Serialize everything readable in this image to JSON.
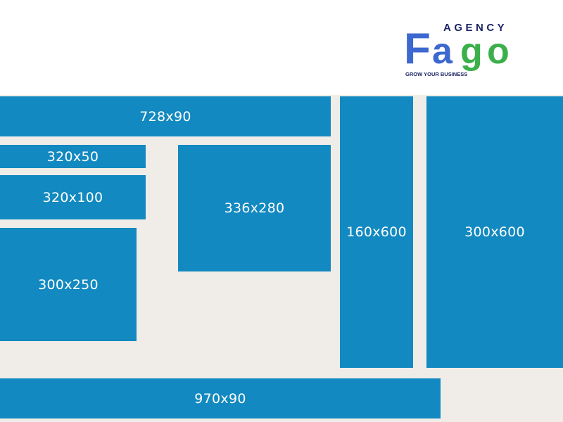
{
  "logo": {
    "agency_text": "AGENCY",
    "brand_f": "F",
    "brand_a": "a",
    "brand_g": "g",
    "brand_o": "o",
    "tagline": "GROW YOUR BUSINESS",
    "colors": {
      "blue": "#3c68d0",
      "green": "#3bb04a",
      "navy": "#1d2566"
    }
  },
  "ad_sizes": {
    "leaderboard": "728x90",
    "mobile_banner": "320x50",
    "large_mobile_banner": "320x100",
    "large_rectangle": "336x280",
    "wide_skyscraper": "160x600",
    "half_page": "300x600",
    "medium_rectangle": "300x250",
    "large_leaderboard": "970x90"
  },
  "colors": {
    "ad_block": "#1289c0",
    "background": "#f0ede8",
    "label": "#ffffff"
  }
}
